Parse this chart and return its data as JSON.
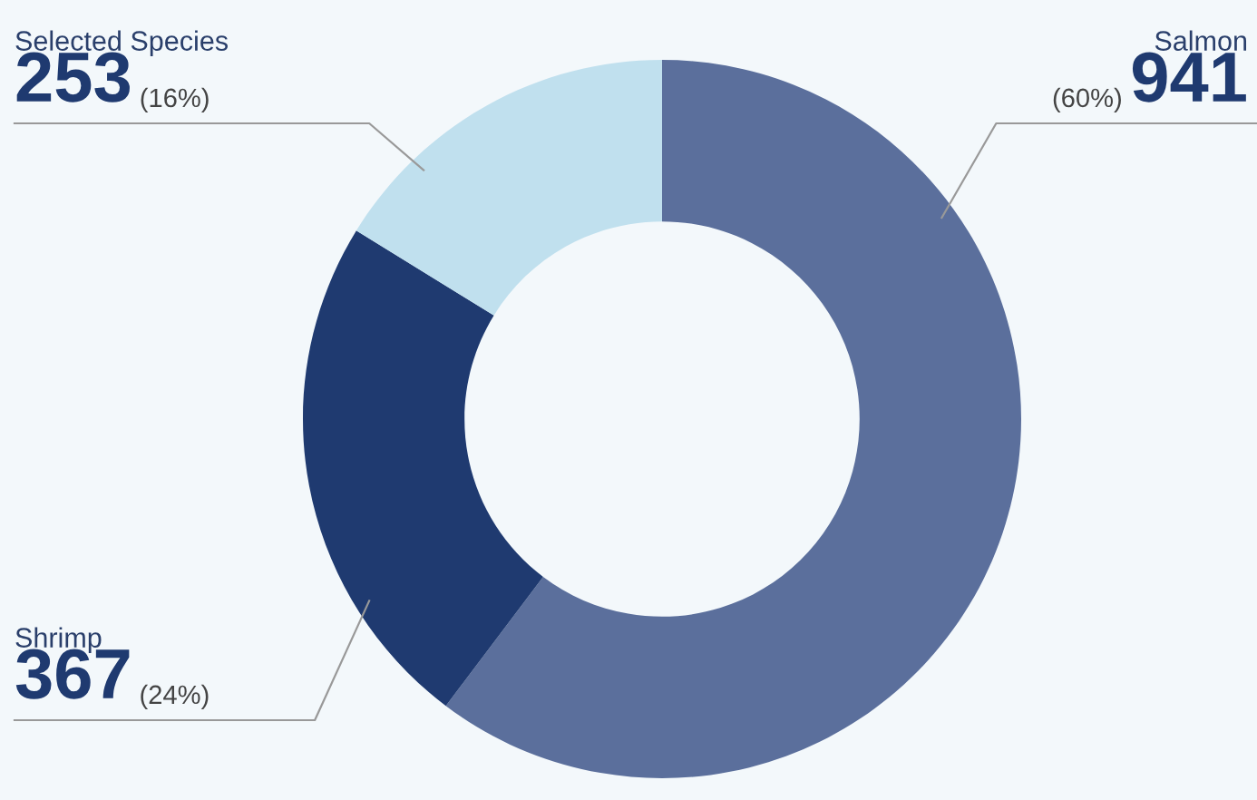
{
  "chart_data": {
    "type": "donut",
    "categories": [
      "Salmon",
      "Shrimp",
      "Selected Species"
    ],
    "values": [
      941,
      367,
      253
    ],
    "colors": [
      "#5b6f9c",
      "#1f3a70",
      "#c0e0ee"
    ],
    "value_labels": [
      "941",
      "367",
      "253"
    ],
    "annotations": [
      "(60%)",
      "(24%)",
      "(16%)"
    ]
  }
}
